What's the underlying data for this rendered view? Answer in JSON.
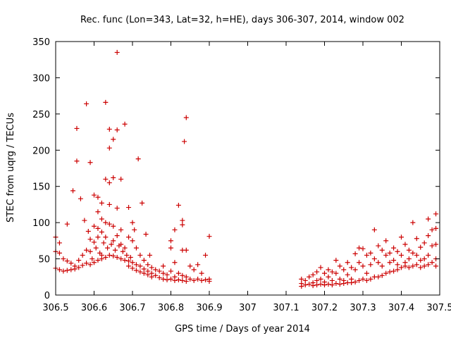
{
  "chart_data": {
    "type": "scatter",
    "title": "Rec. func (Lon=343, Lat=32, h=HE), days 306-307, 2014, window 002",
    "xlabel": "GPS time / Days of year 2014",
    "ylabel": "STEC from uqrg / TECUs",
    "xlim": [
      306.5,
      307.5
    ],
    "ylim": [
      0,
      350
    ],
    "xticks": [
      306.5,
      306.6,
      306.7,
      306.8,
      306.9,
      307,
      307.1,
      307.2,
      307.3,
      307.4,
      307.5
    ],
    "xtick_labels": [
      "306.5",
      "306.6",
      "306.7",
      "306.8",
      "306.9",
      "307",
      "307.1",
      "307.2",
      "307.3",
      "307.4",
      "307.5"
    ],
    "yticks": [
      0,
      50,
      100,
      150,
      200,
      250,
      300,
      350
    ],
    "ytick_labels": [
      "0",
      "50",
      "100",
      "150",
      "200",
      "250",
      "300",
      "350"
    ],
    "grid": false,
    "marker": "plus",
    "color": "#cc0000",
    "series": [
      {
        "points": [
          [
            306.5,
            80
          ],
          [
            306.5,
            60
          ],
          [
            306.5,
            37
          ],
          [
            306.51,
            72
          ],
          [
            306.51,
            58
          ],
          [
            306.51,
            35
          ],
          [
            306.52,
            50
          ],
          [
            306.52,
            33
          ],
          [
            306.53,
            98
          ],
          [
            306.53,
            47
          ],
          [
            306.53,
            34
          ],
          [
            306.54,
            44
          ],
          [
            306.54,
            35
          ],
          [
            306.545,
            144
          ],
          [
            306.55,
            40
          ],
          [
            306.55,
            36
          ],
          [
            306.555,
            230
          ],
          [
            306.555,
            185
          ],
          [
            306.56,
            48
          ],
          [
            306.56,
            38
          ],
          [
            306.565,
            133
          ],
          [
            306.57,
            55
          ],
          [
            306.57,
            41
          ],
          [
            306.575,
            103
          ],
          [
            306.58,
            264
          ],
          [
            306.58,
            62
          ],
          [
            306.58,
            44
          ],
          [
            306.585,
            88
          ],
          [
            306.59,
            183
          ],
          [
            306.59,
            77
          ],
          [
            306.59,
            60
          ],
          [
            306.59,
            42
          ],
          [
            306.595,
            50
          ],
          [
            306.6,
            138
          ],
          [
            306.6,
            95
          ],
          [
            306.6,
            73
          ],
          [
            306.6,
            45
          ],
          [
            306.605,
            65
          ],
          [
            306.61,
            135
          ],
          [
            306.61,
            115
          ],
          [
            306.61,
            92
          ],
          [
            306.61,
            80
          ],
          [
            306.61,
            48
          ],
          [
            306.615,
            58
          ],
          [
            306.62,
            127
          ],
          [
            306.62,
            105
          ],
          [
            306.62,
            87
          ],
          [
            306.62,
            55
          ],
          [
            306.62,
            50
          ],
          [
            306.625,
            72
          ],
          [
            306.63,
            266
          ],
          [
            306.63,
            160
          ],
          [
            306.63,
            100
          ],
          [
            306.63,
            80
          ],
          [
            306.63,
            52
          ],
          [
            306.635,
            65
          ],
          [
            306.64,
            229
          ],
          [
            306.64,
            203
          ],
          [
            306.64,
            155
          ],
          [
            306.64,
            125
          ],
          [
            306.64,
            98
          ],
          [
            306.64,
            55
          ],
          [
            306.645,
            70
          ],
          [
            306.65,
            215
          ],
          [
            306.65,
            162
          ],
          [
            306.65,
            95
          ],
          [
            306.65,
            75
          ],
          [
            306.65,
            54
          ],
          [
            306.655,
            62
          ],
          [
            306.66,
            335
          ],
          [
            306.66,
            228
          ],
          [
            306.66,
            120
          ],
          [
            306.66,
            82
          ],
          [
            306.66,
            52
          ],
          [
            306.665,
            68
          ],
          [
            306.67,
            160
          ],
          [
            306.67,
            90
          ],
          [
            306.67,
            70
          ],
          [
            306.67,
            50
          ],
          [
            306.675,
            60
          ],
          [
            306.68,
            236
          ],
          [
            306.68,
            65
          ],
          [
            306.68,
            48
          ],
          [
            306.685,
            55
          ],
          [
            306.69,
            121
          ],
          [
            306.69,
            80
          ],
          [
            306.69,
            47
          ],
          [
            306.69,
            40
          ],
          [
            306.695,
            52
          ],
          [
            306.7,
            100
          ],
          [
            306.7,
            75
          ],
          [
            306.7,
            45
          ],
          [
            306.7,
            37
          ],
          [
            306.705,
            90
          ],
          [
            306.71,
            65
          ],
          [
            306.71,
            42
          ],
          [
            306.71,
            34
          ],
          [
            306.715,
            188
          ],
          [
            306.72,
            55
          ],
          [
            306.72,
            40
          ],
          [
            306.72,
            32
          ],
          [
            306.725,
            127
          ],
          [
            306.73,
            48
          ],
          [
            306.73,
            36
          ],
          [
            306.73,
            30
          ],
          [
            306.735,
            84
          ],
          [
            306.74,
            42
          ],
          [
            306.74,
            33
          ],
          [
            306.74,
            28
          ],
          [
            306.745,
            55
          ],
          [
            306.75,
            38
          ],
          [
            306.75,
            30
          ],
          [
            306.75,
            25
          ],
          [
            306.76,
            35
          ],
          [
            306.76,
            27
          ],
          [
            306.77,
            33
          ],
          [
            306.77,
            24
          ],
          [
            306.78,
            40
          ],
          [
            306.78,
            30
          ],
          [
            306.78,
            22
          ],
          [
            306.79,
            28
          ],
          [
            306.79,
            21
          ],
          [
            306.8,
            75
          ],
          [
            306.8,
            65
          ],
          [
            306.8,
            33
          ],
          [
            306.8,
            22
          ],
          [
            306.81,
            90
          ],
          [
            306.81,
            45
          ],
          [
            306.81,
            25
          ],
          [
            306.81,
            20
          ],
          [
            306.82,
            124
          ],
          [
            306.82,
            30
          ],
          [
            306.82,
            21
          ],
          [
            306.83,
            103
          ],
          [
            306.83,
            97
          ],
          [
            306.83,
            62
          ],
          [
            306.83,
            27
          ],
          [
            306.83,
            20
          ],
          [
            306.835,
            212
          ],
          [
            306.84,
            245
          ],
          [
            306.84,
            62
          ],
          [
            306.84,
            25
          ],
          [
            306.84,
            19
          ],
          [
            306.85,
            40
          ],
          [
            306.85,
            22
          ],
          [
            306.86,
            35
          ],
          [
            306.86,
            20
          ],
          [
            306.87,
            42
          ],
          [
            306.87,
            22
          ],
          [
            306.88,
            30
          ],
          [
            306.88,
            20
          ],
          [
            306.89,
            55
          ],
          [
            306.89,
            21
          ],
          [
            306.9,
            81
          ],
          [
            306.9,
            22
          ],
          [
            306.9,
            19
          ],
          [
            307.14,
            22
          ],
          [
            307.14,
            16
          ],
          [
            307.14,
            12
          ],
          [
            307.15,
            20
          ],
          [
            307.15,
            14
          ],
          [
            307.16,
            25
          ],
          [
            307.16,
            15
          ],
          [
            307.17,
            28
          ],
          [
            307.17,
            17
          ],
          [
            307.17,
            13
          ],
          [
            307.18,
            32
          ],
          [
            307.18,
            20
          ],
          [
            307.18,
            14
          ],
          [
            307.19,
            38
          ],
          [
            307.19,
            22
          ],
          [
            307.19,
            15
          ],
          [
            307.2,
            30
          ],
          [
            307.2,
            18
          ],
          [
            307.2,
            14
          ],
          [
            307.21,
            35
          ],
          [
            307.21,
            25
          ],
          [
            307.21,
            15
          ],
          [
            307.22,
            32
          ],
          [
            307.22,
            20
          ],
          [
            307.22,
            14
          ],
          [
            307.23,
            48
          ],
          [
            307.23,
            30
          ],
          [
            307.23,
            16
          ],
          [
            307.24,
            40
          ],
          [
            307.24,
            22
          ],
          [
            307.24,
            15
          ],
          [
            307.25,
            35
          ],
          [
            307.25,
            20
          ],
          [
            307.25,
            16
          ],
          [
            307.26,
            45
          ],
          [
            307.26,
            28
          ],
          [
            307.26,
            17
          ],
          [
            307.27,
            38
          ],
          [
            307.27,
            22
          ],
          [
            307.27,
            17
          ],
          [
            307.28,
            57
          ],
          [
            307.28,
            35
          ],
          [
            307.28,
            18
          ],
          [
            307.29,
            65
          ],
          [
            307.29,
            45
          ],
          [
            307.29,
            20
          ],
          [
            307.3,
            64
          ],
          [
            307.3,
            40
          ],
          [
            307.3,
            22
          ],
          [
            307.31,
            55
          ],
          [
            307.31,
            30
          ],
          [
            307.31,
            20
          ],
          [
            307.32,
            58
          ],
          [
            307.32,
            42
          ],
          [
            307.32,
            22
          ],
          [
            307.33,
            90
          ],
          [
            307.33,
            50
          ],
          [
            307.33,
            25
          ],
          [
            307.34,
            68
          ],
          [
            307.34,
            45
          ],
          [
            307.34,
            25
          ],
          [
            307.35,
            62
          ],
          [
            307.35,
            40
          ],
          [
            307.35,
            27
          ],
          [
            307.36,
            75
          ],
          [
            307.36,
            55
          ],
          [
            307.36,
            30
          ],
          [
            307.37,
            58
          ],
          [
            307.37,
            45
          ],
          [
            307.37,
            32
          ],
          [
            307.38,
            65
          ],
          [
            307.38,
            48
          ],
          [
            307.38,
            33
          ],
          [
            307.39,
            60
          ],
          [
            307.39,
            42
          ],
          [
            307.39,
            35
          ],
          [
            307.4,
            80
          ],
          [
            307.4,
            55
          ],
          [
            307.4,
            38
          ],
          [
            307.41,
            70
          ],
          [
            307.41,
            45
          ],
          [
            307.41,
            40
          ],
          [
            307.42,
            62
          ],
          [
            307.42,
            50
          ],
          [
            307.42,
            38
          ],
          [
            307.43,
            100
          ],
          [
            307.43,
            58
          ],
          [
            307.43,
            40
          ],
          [
            307.44,
            78
          ],
          [
            307.44,
            55
          ],
          [
            307.44,
            42
          ],
          [
            307.45,
            66
          ],
          [
            307.45,
            48
          ],
          [
            307.45,
            38
          ],
          [
            307.46,
            72
          ],
          [
            307.46,
            50
          ],
          [
            307.46,
            40
          ],
          [
            307.47,
            105
          ],
          [
            307.47,
            82
          ],
          [
            307.47,
            55
          ],
          [
            307.47,
            42
          ],
          [
            307.48,
            90
          ],
          [
            307.48,
            68
          ],
          [
            307.48,
            45
          ],
          [
            307.49,
            112
          ],
          [
            307.49,
            92
          ],
          [
            307.49,
            70
          ],
          [
            307.49,
            50
          ],
          [
            307.49,
            40
          ]
        ]
      }
    ]
  }
}
